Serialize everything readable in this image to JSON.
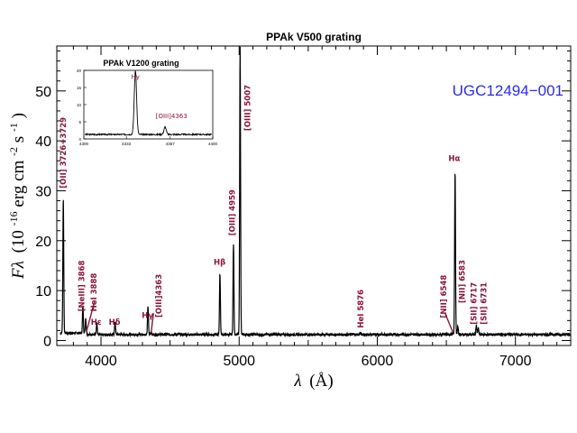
{
  "chart_data": {
    "type": "line",
    "title": "PPAk V500 grating",
    "object_name": "UGC12494−001",
    "xlabel": {
      "symbol": "λ",
      "unit": "(Å)"
    },
    "ylabel": {
      "symbol": "Fλ",
      "text": "(10",
      "exp1": "-16",
      "mid": " erg cm",
      "exp2": "-2",
      "mid2": " s",
      "exp3": "-1",
      "end": ")"
    },
    "xlim": [
      3680,
      7400
    ],
    "ylim": [
      -1,
      59
    ],
    "xticks": [
      4000,
      5000,
      6000,
      7000
    ],
    "xtick_labels": [
      "4000",
      "5000",
      "6000",
      "7000"
    ],
    "yticks": [
      0,
      10,
      20,
      30,
      40,
      50
    ],
    "ytick_labels": [
      "0",
      "10",
      "20",
      "30",
      "40",
      "50"
    ],
    "continuum_level": 1.2,
    "lines": [
      {
        "name": "[OII] 3726+3729",
        "wavelength": 3727,
        "flux": 28.3
      },
      {
        "name": "[NeIII] 3868",
        "wavelength": 3869,
        "flux": 6.6
      },
      {
        "name": "HeI 3888",
        "wavelength": 3889,
        "flux": 4.2
      },
      {
        "name": "Hε",
        "wavelength": 3970,
        "flux": 3.4
      },
      {
        "name": "Hδ",
        "wavelength": 4102,
        "flux": 3.8
      },
      {
        "name": "Hγ",
        "wavelength": 4340,
        "flux": 7.0
      },
      {
        "name": "[OIII] 4363",
        "wavelength": 4363,
        "flux": 1.8
      },
      {
        "name": "Hβ",
        "wavelength": 4861,
        "flux": 13.5
      },
      {
        "name": "[OIII] 4959",
        "wavelength": 4959,
        "flux": 19.4
      },
      {
        "name": "[OIII] 5007",
        "wavelength": 5007,
        "flux": 59.0
      },
      {
        "name": "HeI 5876",
        "wavelength": 5876,
        "flux": 1.6
      },
      {
        "name": "[NII] 6548",
        "wavelength": 6548,
        "flux": 1.6
      },
      {
        "name": "Hα",
        "wavelength": 6563,
        "flux": 34.0
      },
      {
        "name": "[NII] 6583",
        "wavelength": 6583,
        "flux": 2.8
      },
      {
        "name": "[SII] 6717",
        "wavelength": 6717,
        "flux": 3.2
      },
      {
        "name": "[SII] 6731",
        "wavelength": 6731,
        "flux": 2.5
      }
    ],
    "labels": [
      {
        "text": "[OII] 3726+3729",
        "wl": 3727,
        "y": 30.5,
        "rot": true
      },
      {
        "text": "[NeIII] 3868",
        "wl": 3858,
        "y": 5.8,
        "rot": true
      },
      {
        "text": "HeI 3888",
        "wl": 3948,
        "y": 5.8,
        "rot": true
      },
      {
        "text": "Hε",
        "wl": 3965,
        "y": 3.2,
        "rot": false
      },
      {
        "text": "Hδ",
        "wl": 4098,
        "y": 3.2,
        "rot": false
      },
      {
        "text": "Hγ",
        "wl": 4337,
        "y": 4.5,
        "rot": false
      },
      {
        "text": "[OIII]4363",
        "wl": 4418,
        "y": 4.6,
        "rot": true
      },
      {
        "text": "Hβ",
        "wl": 4859,
        "y": 15.2,
        "rot": false
      },
      {
        "text": "[OIII] 4959",
        "wl": 4948,
        "y": 21.0,
        "rot": true
      },
      {
        "text": "[OIII] 5007",
        "wl": 5060,
        "y": 42.0,
        "rot": true
      },
      {
        "text": "HeI 5876",
        "wl": 5880,
        "y": 2.5,
        "rot": true
      },
      {
        "text": "[NII] 6548",
        "wl": 6480,
        "y": 4.5,
        "rot": true
      },
      {
        "text": "Hα",
        "wl": 6557,
        "y": 36.0,
        "rot": false
      },
      {
        "text": "[NII] 6583",
        "wl": 6612,
        "y": 7.5,
        "rot": true
      },
      {
        "text": "[SII] 6717",
        "wl": 6697,
        "y": 3.2,
        "rot": true
      },
      {
        "text": "[SII] 6731",
        "wl": 6770,
        "y": 3.2,
        "rot": true
      }
    ],
    "inset": {
      "title": "PPAk V1200 grating",
      "xlim": [
        4300,
        4400
      ],
      "ylim": [
        0,
        20
      ],
      "xticks": [
        4300,
        4333,
        4367,
        4400
      ],
      "xtick_labels": [
        "4300",
        "4333",
        "4367",
        "4400"
      ],
      "yticks": [
        0,
        5,
        10,
        15,
        20
      ],
      "ytick_labels": [
        "0",
        "5",
        "10",
        "15",
        "20"
      ],
      "continuum_level": 1.3,
      "lines": [
        {
          "name": "Hγ",
          "wavelength": 4340,
          "flux": 20.0
        },
        {
          "name": "[OIII]4363",
          "wavelength": 4363,
          "flux": 3.5
        }
      ],
      "labels": [
        {
          "text": "Hγ",
          "wl": 4340,
          "y": 17.5
        },
        {
          "text": "[OIII]4363",
          "wl": 4368,
          "y": 6.0
        }
      ]
    },
    "colors": {
      "spectrum": "#000000",
      "line_labels": "#8a1538",
      "object": "#2a2af0"
    }
  }
}
